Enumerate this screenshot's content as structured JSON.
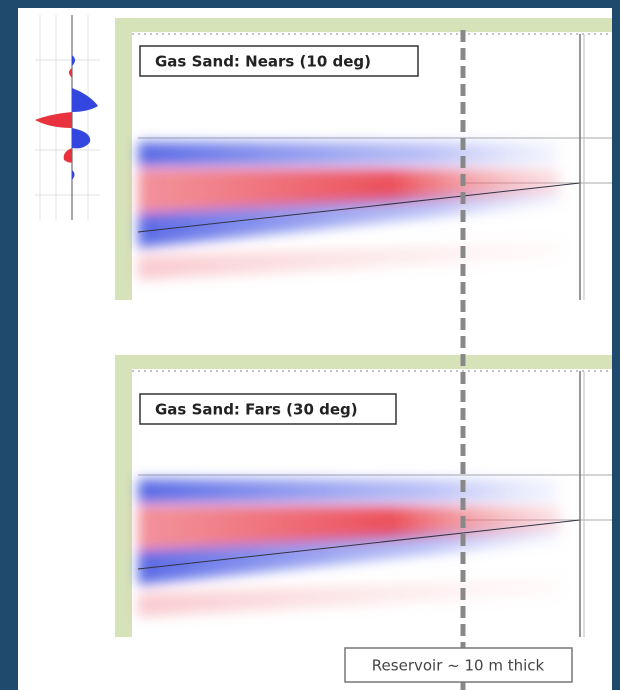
{
  "panels": [
    {
      "label": "Gas Sand:  Nears (10 deg)"
    },
    {
      "label": "Gas Sand:  Fars (30 deg)"
    }
  ],
  "annotation": "Reservoir ~ 10 m thick"
}
